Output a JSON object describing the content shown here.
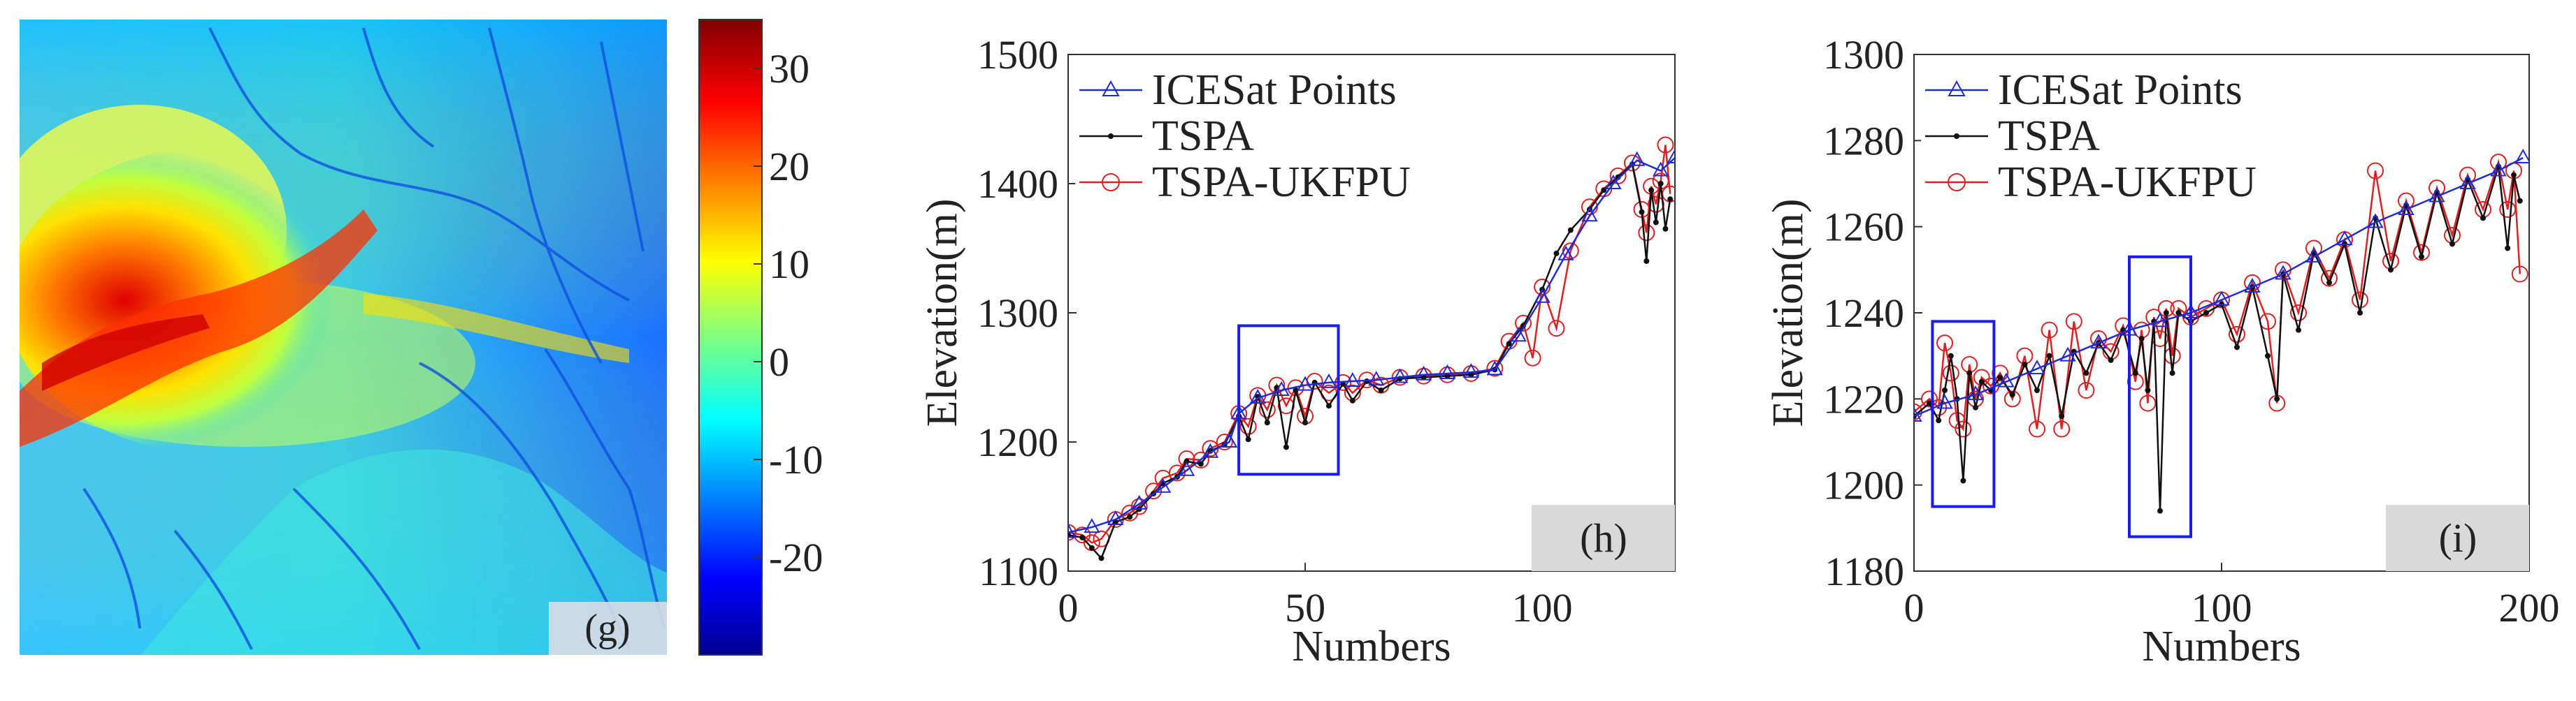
{
  "panel_g": {
    "label": "(g)",
    "colorbar_ticks": [
      "30",
      "20",
      "10",
      "0",
      "-10",
      "-20"
    ],
    "colorbar_values": [
      30,
      20,
      10,
      0,
      -10,
      -20
    ],
    "colorbar_range": [
      -30,
      35
    ]
  },
  "chart_data": [
    {
      "type": "line",
      "panel": "(h)",
      "ylabel": "Elevation(m)",
      "xlabel": "Numbers",
      "xlim": [
        0,
        128
      ],
      "ylim": [
        1100,
        1500
      ],
      "xticks": [
        0,
        50,
        100
      ],
      "yticks": [
        1100,
        1200,
        1300,
        1400,
        1500
      ],
      "xtick_labels": [
        "0",
        "50",
        "100"
      ],
      "ytick_labels": [
        "1100",
        "1200",
        "1300",
        "1400",
        "1500"
      ],
      "legend": [
        "ICESat Points",
        "TSPA",
        "TSPA-UKFPU"
      ],
      "legend_position": "top-left",
      "highlight_box": {
        "x": [
          36,
          57
        ],
        "y": [
          1175,
          1290
        ]
      },
      "series": [
        {
          "name": "ICESat Points",
          "color": "#1f2bd6",
          "marker": "triangle",
          "values_description": "smooth trend",
          "x": [
            0,
            5,
            10,
            15,
            20,
            25,
            30,
            34,
            36,
            40,
            45,
            50,
            55,
            60,
            65,
            70,
            75,
            80,
            85,
            90,
            95,
            100,
            105,
            110,
            115,
            120,
            125,
            128
          ],
          "y": [
            1130,
            1134,
            1140,
            1152,
            1165,
            1178,
            1192,
            1200,
            1222,
            1234,
            1240,
            1244,
            1246,
            1247,
            1248,
            1250,
            1252,
            1253,
            1254,
            1256,
            1282,
            1312,
            1345,
            1375,
            1400,
            1418,
            1410,
            1420
          ]
        },
        {
          "name": "TSPA",
          "color": "#111111",
          "marker": "dot",
          "x": [
            0,
            3,
            5,
            7,
            10,
            13,
            15,
            18,
            20,
            23,
            25,
            28,
            30,
            33,
            36,
            38,
            40,
            42,
            44,
            46,
            48,
            50,
            52,
            55,
            58,
            60,
            63,
            66,
            70,
            75,
            80,
            85,
            90,
            93,
            96,
            100,
            103,
            106,
            110,
            113,
            116,
            119,
            121,
            122,
            123,
            124,
            125,
            126,
            127
          ],
          "y": [
            1128,
            1126,
            1118,
            1110,
            1138,
            1142,
            1148,
            1160,
            1168,
            1173,
            1185,
            1183,
            1193,
            1198,
            1220,
            1202,
            1235,
            1215,
            1242,
            1196,
            1240,
            1215,
            1246,
            1228,
            1245,
            1232,
            1247,
            1240,
            1249,
            1250,
            1251,
            1252,
            1256,
            1276,
            1290,
            1318,
            1346,
            1364,
            1380,
            1395,
            1405,
            1415,
            1378,
            1340,
            1395,
            1370,
            1400,
            1365,
            1388
          ]
        },
        {
          "name": "TSPA-UKFPU",
          "color": "#e02020",
          "marker": "circle",
          "x": [
            0,
            3,
            5,
            7,
            10,
            13,
            15,
            18,
            20,
            23,
            25,
            28,
            30,
            33,
            36,
            38,
            40,
            42,
            44,
            46,
            48,
            50,
            52,
            55,
            58,
            60,
            63,
            66,
            70,
            75,
            80,
            85,
            90,
            93,
            96,
            98,
            100,
            103,
            106,
            110,
            113,
            116,
            119,
            121,
            122,
            123,
            124,
            125,
            126,
            127
          ],
          "y": [
            1130,
            1128,
            1122,
            1125,
            1140,
            1145,
            1150,
            1162,
            1172,
            1176,
            1187,
            1186,
            1195,
            1200,
            1222,
            1212,
            1236,
            1225,
            1244,
            1228,
            1242,
            1220,
            1247,
            1238,
            1246,
            1238,
            1248,
            1244,
            1250,
            1251,
            1252,
            1253,
            1257,
            1278,
            1292,
            1265,
            1320,
            1288,
            1348,
            1382,
            1396,
            1406,
            1416,
            1380,
            1362,
            1398,
            1384,
            1402,
            1430,
            1392
          ]
        }
      ]
    },
    {
      "type": "line",
      "panel": "(i)",
      "ylabel": "Elevation(m)",
      "xlabel": "Numbers",
      "xlim": [
        0,
        200
      ],
      "ylim": [
        1180,
        1300
      ],
      "xticks": [
        0,
        100,
        200
      ],
      "yticks": [
        1180,
        1200,
        1220,
        1240,
        1260,
        1280,
        1300
      ],
      "xtick_labels": [
        "0",
        "100",
        "200"
      ],
      "ytick_labels": [
        "1180",
        "1200",
        "1220",
        "1240",
        "1260",
        "1280",
        "1300"
      ],
      "legend": [
        "ICESat Points",
        "TSPA",
        "TSPA-UKFPU"
      ],
      "legend_position": "top-left",
      "highlight_boxes": [
        {
          "x": [
            6,
            26
          ],
          "y": [
            1195,
            1238
          ]
        },
        {
          "x": [
            70,
            90
          ],
          "y": [
            1188,
            1253
          ]
        }
      ],
      "series": [
        {
          "name": "ICESat Points",
          "color": "#1f2bd6",
          "marker": "triangle",
          "x": [
            0,
            10,
            20,
            30,
            40,
            50,
            60,
            70,
            80,
            90,
            100,
            110,
            120,
            130,
            140,
            150,
            160,
            170,
            180,
            190,
            198
          ],
          "y": [
            1216,
            1219,
            1221,
            1224,
            1227,
            1230,
            1233,
            1236,
            1238,
            1240,
            1243,
            1246,
            1249,
            1253,
            1257,
            1261,
            1264,
            1267,
            1270,
            1273,
            1276
          ]
        },
        {
          "name": "TSPA",
          "color": "#111111",
          "marker": "dot",
          "x": [
            0,
            5,
            8,
            10,
            12,
            14,
            16,
            18,
            20,
            22,
            25,
            28,
            32,
            36,
            40,
            44,
            48,
            52,
            56,
            60,
            64,
            68,
            72,
            74,
            76,
            78,
            80,
            82,
            84,
            86,
            90,
            95,
            100,
            105,
            110,
            115,
            118,
            120,
            125,
            130,
            135,
            140,
            145,
            150,
            155,
            160,
            165,
            170,
            175,
            180,
            185,
            190,
            193,
            195,
            197
          ],
          "y": [
            1216,
            1219,
            1215,
            1222,
            1230,
            1220,
            1201,
            1226,
            1218,
            1224,
            1222,
            1225,
            1221,
            1228,
            1222,
            1230,
            1216,
            1231,
            1226,
            1233,
            1229,
            1236,
            1226,
            1234,
            1222,
            1238,
            1194,
            1240,
            1226,
            1240,
            1238,
            1240,
            1242,
            1232,
            1246,
            1230,
            1220,
            1249,
            1236,
            1254,
            1247,
            1256,
            1240,
            1262,
            1250,
            1265,
            1253,
            1268,
            1256,
            1271,
            1262,
            1274,
            1255,
            1272,
            1266
          ]
        },
        {
          "name": "TSPA-UKFPU",
          "color": "#e02020",
          "marker": "circle",
          "x": [
            0,
            5,
            8,
            10,
            12,
            14,
            16,
            18,
            20,
            22,
            25,
            28,
            32,
            36,
            40,
            44,
            48,
            52,
            56,
            60,
            64,
            68,
            72,
            74,
            76,
            78,
            80,
            82,
            84,
            86,
            90,
            95,
            100,
            105,
            110,
            115,
            118,
            120,
            125,
            130,
            135,
            140,
            145,
            150,
            155,
            160,
            165,
            170,
            175,
            180,
            185,
            190,
            193,
            195,
            197
          ],
          "y": [
            1217,
            1220,
            1218,
            1233,
            1226,
            1215,
            1213,
            1228,
            1220,
            1225,
            1223,
            1226,
            1220,
            1230,
            1213,
            1236,
            1213,
            1238,
            1222,
            1234,
            1231,
            1237,
            1224,
            1236,
            1219,
            1239,
            1234,
            1241,
            1230,
            1241,
            1239,
            1241,
            1243,
            1235,
            1247,
            1238,
            1219,
            1250,
            1240,
            1255,
            1248,
            1257,
            1243,
            1273,
            1252,
            1266,
            1254,
            1269,
            1258,
            1272,
            1264,
            1275,
            1264,
            1273,
            1249
          ]
        }
      ]
    }
  ],
  "panel_h": {
    "label": "(h)"
  },
  "panel_i": {
    "label": "(i)"
  }
}
